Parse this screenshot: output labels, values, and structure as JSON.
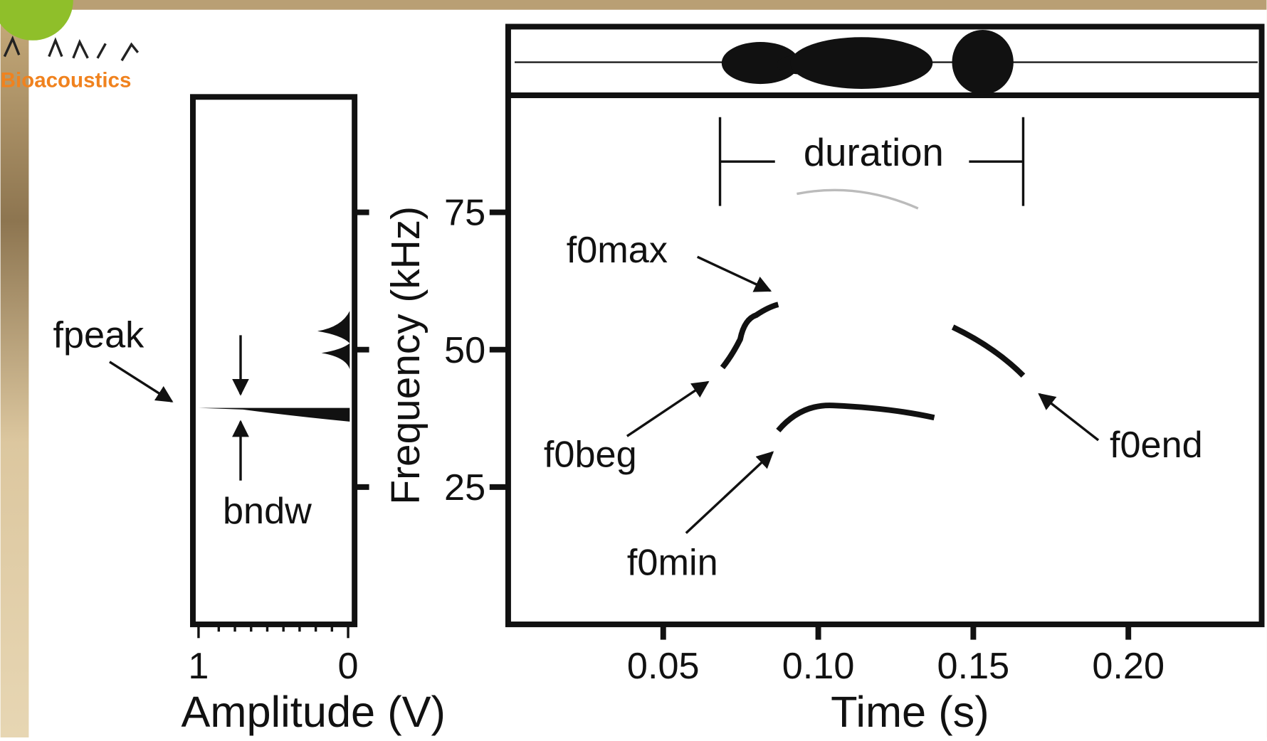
{
  "logo": {
    "text": "Bioacoustics"
  },
  "spectrum": {
    "xlabel": "Amplitude (V)",
    "xlim": [
      1,
      0
    ],
    "xticks": [
      1,
      0
    ],
    "annotations": {
      "peak": "fpeak",
      "bandwidth": "bndw"
    }
  },
  "spectrogram": {
    "ylabel": "Frequency (kHz)",
    "ylim": [
      0,
      96
    ],
    "yticks": [
      25,
      50,
      75
    ],
    "xlabel": "Time (s)",
    "xlim": [
      0,
      0.243
    ],
    "xticks": [
      0.05,
      {
        "value": 0.1,
        "label": "0.10"
      },
      0.15,
      {
        "value": 0.2,
        "label": "0.20"
      }
    ],
    "annotations": {
      "duration": "duration",
      "f0max": "f0max",
      "f0beg": "f0beg",
      "f0end": "f0end",
      "f0min": "f0min"
    }
  }
}
